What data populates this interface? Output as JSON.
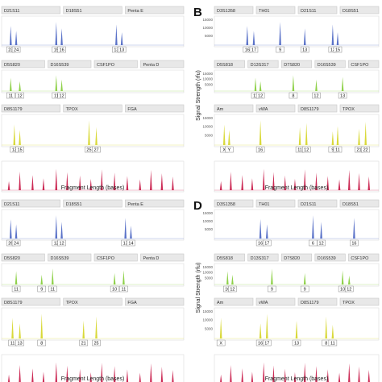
{
  "colors": {
    "blue": "#5a72c8",
    "green": "#8fd14a",
    "yellow": "#d9d93a",
    "red": "#cc2a55",
    "bar": "#e8e8e8",
    "frame": "#999999",
    "axis": "#bbbbbb"
  },
  "common": {
    "xlabel": "Fragment Length (bases)",
    "ylabel": "Signal Strength (rfu)"
  },
  "panels": [
    {
      "letter": "",
      "ticks": [],
      "lanes": [
        {
          "color": "blue",
          "markers": [
            "D21S11",
            "D18S51",
            "Penta E"
          ],
          "alleles": [
            "23",
            "24",
            "15",
            "16",
            "13",
            "13"
          ]
        },
        {
          "color": "green",
          "markers": [
            "D5S820",
            "D16S539",
            "CSF1PO",
            "Penta D"
          ],
          "alleles": [
            "11",
            "12",
            "11",
            "12"
          ]
        },
        {
          "color": "yellow",
          "markers": [
            "D8S1179",
            "TPOX",
            "FGA"
          ],
          "alleles": [
            "13",
            "15",
            "25",
            "27"
          ]
        },
        {
          "color": "red",
          "markers": [],
          "alleles": []
        }
      ]
    },
    {
      "letter": "B",
      "ticks": [
        "15000",
        "10000",
        "5000"
      ],
      "lanes": [
        {
          "color": "blue",
          "markers": [
            "D3S1358",
            "TH01",
            "D21S11",
            "D18S51"
          ],
          "alleles": [
            "16",
            "17",
            "9",
            "13",
            "13",
            "15"
          ]
        },
        {
          "color": "green",
          "markers": [
            "D5S818",
            "D13S317",
            "D7S820",
            "D16S539",
            "CSF1PO"
          ],
          "alleles": [
            "11",
            "12",
            "8",
            "12",
            "13"
          ]
        },
        {
          "color": "yellow",
          "markers": [
            "Am",
            "vWA",
            "D8S1179",
            "TPOX"
          ],
          "alleles": [
            "X",
            "Y",
            "16",
            "11",
            "12",
            "9",
            "11",
            "21",
            "22"
          ]
        },
        {
          "color": "red",
          "markers": [],
          "alleles": []
        }
      ]
    },
    {
      "letter": "",
      "ticks": [],
      "lanes": [
        {
          "color": "blue",
          "markers": [
            "D21S11",
            "D18S51",
            "Penta E"
          ],
          "alleles": [
            "26",
            "24",
            "12",
            "12",
            "13",
            "14"
          ]
        },
        {
          "color": "green",
          "markers": [
            "D5S820",
            "D16S539",
            "CSF1PO",
            "Penta D"
          ],
          "alleles": [
            "11",
            "9",
            "11",
            "10",
            "11"
          ]
        },
        {
          "color": "yellow",
          "markers": [
            "D8S1179",
            "TPOX",
            "FGA"
          ],
          "alleles": [
            "11",
            "13",
            "8",
            "21",
            "25"
          ]
        },
        {
          "color": "red",
          "markers": [],
          "alleles": []
        }
      ]
    },
    {
      "letter": "D",
      "ticks": [
        "15000",
        "10000",
        "5000"
      ],
      "lanes": [
        {
          "color": "blue",
          "markers": [
            "D3S1358",
            "TH01",
            "D21S11",
            "D18S51"
          ],
          "alleles": [
            "16",
            "17",
            "6",
            "12",
            "16"
          ]
        },
        {
          "color": "green",
          "markers": [
            "D5S818",
            "D13S317",
            "D7S820",
            "D16S539",
            "CSF1PO"
          ],
          "alleles": [
            "10",
            "12",
            "9",
            "9",
            "10",
            "12"
          ]
        },
        {
          "color": "yellow",
          "markers": [
            "Am",
            "vWA",
            "D8S1179",
            "TPOX"
          ],
          "alleles": [
            "X",
            "16",
            "17",
            "13",
            "8",
            "11"
          ]
        },
        {
          "color": "red",
          "markers": [],
          "alleles": []
        }
      ]
    }
  ]
}
